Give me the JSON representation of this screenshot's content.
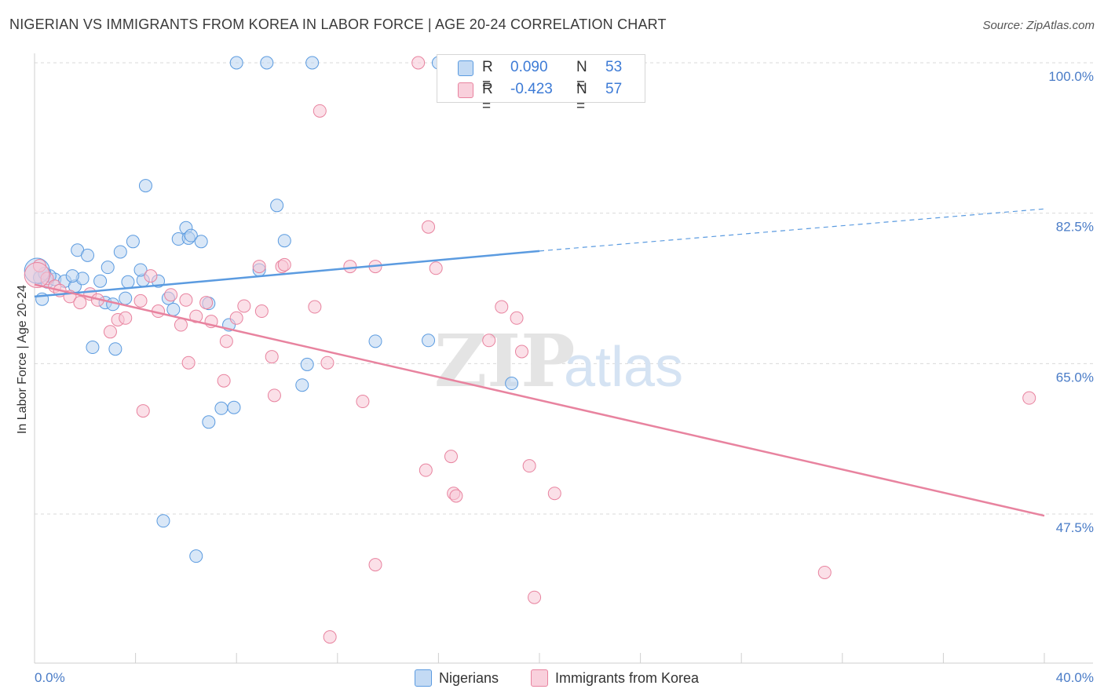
{
  "chart_data": {
    "type": "scatter",
    "title": "NIGERIAN VS IMMIGRANTS FROM KOREA IN LABOR FORCE | AGE 20-24 CORRELATION CHART",
    "source": "Source: ZipAtlas.com",
    "ylabel": "In Labor Force | Age 20-24",
    "xlim": [
      0,
      40
    ],
    "ylim": [
      30,
      100
    ],
    "x_tick_labels": [
      "0.0%",
      "40.0%"
    ],
    "y_ticks": [
      {
        "value": 100,
        "label": "100.0%"
      },
      {
        "value": 82.5,
        "label": "82.5%"
      },
      {
        "value": 65,
        "label": "65.0%"
      },
      {
        "value": 47.5,
        "label": "47.5%"
      }
    ],
    "watermark": "ZIPatlas",
    "legend": {
      "r_label": "R =",
      "n_label": "N =",
      "entries": [
        {
          "name": "Nigerians",
          "r": "0.090",
          "n": "53",
          "color": "#5b9be0"
        },
        {
          "name": "Immigrants from Korea",
          "r": "-0.423",
          "n": "57",
          "color": "#e8839f"
        }
      ]
    },
    "series": [
      {
        "name": "Nigerians",
        "color": "#5b9be0",
        "fill": "#b9d3f1",
        "trend": {
          "x0": 0,
          "y0": 72.8,
          "x1": 20,
          "y1": 78.1,
          "dash_to_x": 40,
          "dash_to_y": 83.0
        },
        "points": [
          [
            0.2,
            75.0
          ],
          [
            0.5,
            74.5
          ],
          [
            0.3,
            72.5
          ],
          [
            0.8,
            74.8
          ],
          [
            0.6,
            75.2
          ],
          [
            1.2,
            74.6
          ],
          [
            1.6,
            74.0
          ],
          [
            1.9,
            74.9
          ],
          [
            1.5,
            75.2
          ],
          [
            0.4,
            75.5
          ],
          [
            1.7,
            78.2
          ],
          [
            2.1,
            77.6
          ],
          [
            2.6,
            74.6
          ],
          [
            2.9,
            76.2
          ],
          [
            3.4,
            78.0
          ],
          [
            3.9,
            79.2
          ],
          [
            3.6,
            72.6
          ],
          [
            3.7,
            74.5
          ],
          [
            4.3,
            74.7
          ],
          [
            4.2,
            75.9
          ],
          [
            4.9,
            74.6
          ],
          [
            5.3,
            72.6
          ],
          [
            5.5,
            71.3
          ],
          [
            5.7,
            79.5
          ],
          [
            6.0,
            80.8
          ],
          [
            6.1,
            79.6
          ],
          [
            6.2,
            79.9
          ],
          [
            6.6,
            79.2
          ],
          [
            6.9,
            72.0
          ],
          [
            2.8,
            72.1
          ],
          [
            3.1,
            71.9
          ],
          [
            2.3,
            66.9
          ],
          [
            3.2,
            66.7
          ],
          [
            4.4,
            85.7
          ],
          [
            7.7,
            69.5
          ],
          [
            7.4,
            59.8
          ],
          [
            7.9,
            59.9
          ],
          [
            6.9,
            58.2
          ],
          [
            8.9,
            75.9
          ],
          [
            9.6,
            83.4
          ],
          [
            9.9,
            79.3
          ],
          [
            10.8,
            64.9
          ],
          [
            10.6,
            62.5
          ],
          [
            13.5,
            67.6
          ],
          [
            15.6,
            67.7
          ],
          [
            18.9,
            62.7
          ],
          [
            5.1,
            46.7
          ],
          [
            6.4,
            42.6
          ],
          [
            8.0,
            100.0
          ],
          [
            9.2,
            100.0
          ],
          [
            11.0,
            100.0
          ],
          [
            16.0,
            100.0
          ],
          [
            0.1,
            75.8
          ]
        ]
      },
      {
        "name": "Immigrants from Korea",
        "color": "#e8839f",
        "fill": "#f7c7d5",
        "trend": {
          "x0": 0,
          "y0": 74.2,
          "x1": 40,
          "y1": 47.3
        },
        "points": [
          [
            0.2,
            76.4
          ],
          [
            0.5,
            74.9
          ],
          [
            0.8,
            74.0
          ],
          [
            1.0,
            73.5
          ],
          [
            1.4,
            72.8
          ],
          [
            1.8,
            72.1
          ],
          [
            2.2,
            73.1
          ],
          [
            2.5,
            72.4
          ],
          [
            3.0,
            68.7
          ],
          [
            3.3,
            70.1
          ],
          [
            3.6,
            70.3
          ],
          [
            4.2,
            72.3
          ],
          [
            4.6,
            75.2
          ],
          [
            4.9,
            71.1
          ],
          [
            5.4,
            73.0
          ],
          [
            5.8,
            69.5
          ],
          [
            6.0,
            72.4
          ],
          [
            6.4,
            70.5
          ],
          [
            6.8,
            72.1
          ],
          [
            7.0,
            69.9
          ],
          [
            7.6,
            67.6
          ],
          [
            8.0,
            70.3
          ],
          [
            8.3,
            71.7
          ],
          [
            8.9,
            76.3
          ],
          [
            9.0,
            71.1
          ],
          [
            9.4,
            65.8
          ],
          [
            9.8,
            76.3
          ],
          [
            9.9,
            76.5
          ],
          [
            11.1,
            71.6
          ],
          [
            11.6,
            65.1
          ],
          [
            12.5,
            76.3
          ],
          [
            13.5,
            76.3
          ],
          [
            15.6,
            80.9
          ],
          [
            15.9,
            76.1
          ],
          [
            18.0,
            67.7
          ],
          [
            18.5,
            71.6
          ],
          [
            19.3,
            66.4
          ],
          [
            19.1,
            70.3
          ],
          [
            6.1,
            65.1
          ],
          [
            7.5,
            63.0
          ],
          [
            9.5,
            61.3
          ],
          [
            13.0,
            60.6
          ],
          [
            4.3,
            59.5
          ],
          [
            16.5,
            54.2
          ],
          [
            15.5,
            52.6
          ],
          [
            16.6,
            49.9
          ],
          [
            16.7,
            49.6
          ],
          [
            19.6,
            53.1
          ],
          [
            20.6,
            49.9
          ],
          [
            13.5,
            41.6
          ],
          [
            19.8,
            37.8
          ],
          [
            11.7,
            33.2
          ],
          [
            31.3,
            40.7
          ],
          [
            39.4,
            61.0
          ],
          [
            11.3,
            94.4
          ],
          [
            15.2,
            100.0
          ],
          [
            0.1,
            75.3
          ]
        ]
      }
    ]
  }
}
